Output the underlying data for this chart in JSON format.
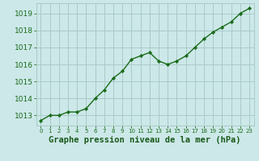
{
  "x": [
    0,
    1,
    2,
    3,
    4,
    5,
    6,
    7,
    8,
    9,
    10,
    11,
    12,
    13,
    14,
    15,
    16,
    17,
    18,
    19,
    20,
    21,
    22,
    23
  ],
  "y": [
    1012.7,
    1013.0,
    1013.0,
    1013.2,
    1013.2,
    1013.4,
    1014.0,
    1014.5,
    1015.2,
    1015.6,
    1016.3,
    1016.5,
    1016.7,
    1016.2,
    1016.0,
    1016.2,
    1016.5,
    1017.0,
    1017.5,
    1017.9,
    1018.2,
    1018.5,
    1019.0,
    1019.3
  ],
  "line_color": "#1a6b1a",
  "marker": "D",
  "marker_size": 2.2,
  "bg_color": "#cce8e8",
  "grid_color": "#aacaca",
  "xlabel": "Graphe pression niveau de la mer (hPa)",
  "xlabel_fontsize": 7.5,
  "axis_label_color": "#1a5a1a",
  "ytick_fontsize": 6.5,
  "xtick_fontsize": 5.0,
  "ylim_min": 1012.4,
  "ylim_max": 1019.6,
  "yticks": [
    1013,
    1014,
    1015,
    1016,
    1017,
    1018,
    1019
  ],
  "line_width": 1.0
}
